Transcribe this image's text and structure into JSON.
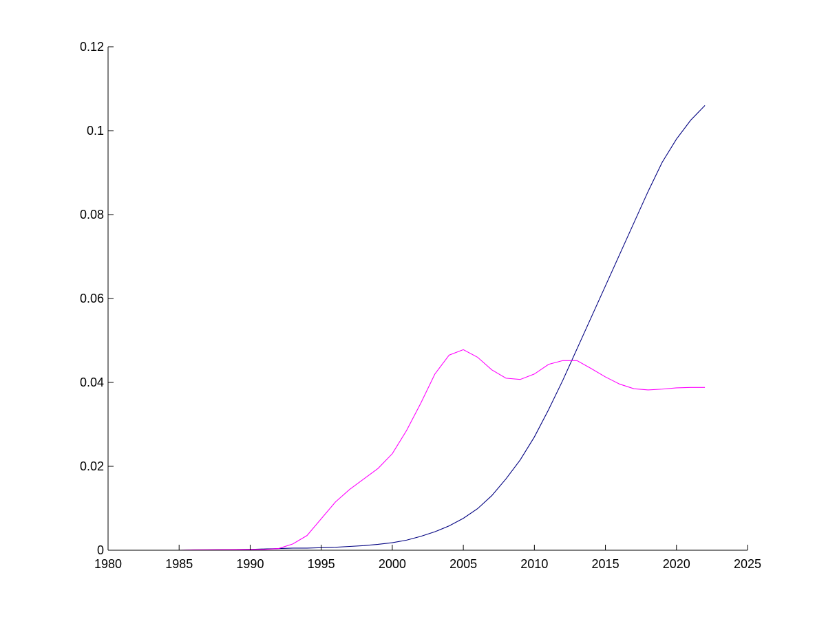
{
  "chart_data": {
    "type": "line",
    "title": "",
    "xlabel": "",
    "ylabel": "",
    "xlim": [
      1980,
      2025
    ],
    "ylim": [
      0,
      0.12
    ],
    "x_ticks": [
      1980,
      1985,
      1990,
      1995,
      2000,
      2005,
      2010,
      2015,
      2020,
      2025
    ],
    "y_ticks": [
      0,
      0.02,
      0.04,
      0.06,
      0.08,
      0.1,
      0.12
    ],
    "x_tick_labels": [
      "1980",
      "1985",
      "1990",
      "1995",
      "2000",
      "2005",
      "2010",
      "2015",
      "2020",
      "2025"
    ],
    "y_tick_labels": [
      "0",
      "0.02",
      "0.04",
      "0.06",
      "0.08",
      "0.1",
      "0.12"
    ],
    "grid": false,
    "legend": "none",
    "series": [
      {
        "color": "#000080",
        "x": [
          1980,
          1985,
          1990,
          1991,
          1992,
          1993,
          1994,
          1995,
          1996,
          1997,
          1998,
          1999,
          2000,
          2001,
          2002,
          2003,
          2004,
          2005,
          2006,
          2007,
          2008,
          2009,
          2010,
          2011,
          2012,
          2013,
          2014,
          2015,
          2016,
          2017,
          2018,
          2019,
          2020,
          2021,
          2022
        ],
        "y": [
          0,
          0,
          0.0002,
          0.0003,
          0.0004,
          0.0005,
          0.0005,
          0.0006,
          0.0007,
          0.0009,
          0.0011,
          0.0014,
          0.0018,
          0.0024,
          0.0033,
          0.0044,
          0.0058,
          0.0076,
          0.0099,
          0.013,
          0.017,
          0.0215,
          0.027,
          0.0335,
          0.0405,
          0.048,
          0.0555,
          0.063,
          0.0705,
          0.078,
          0.0855,
          0.0925,
          0.098,
          0.1025,
          0.106
        ]
      },
      {
        "color": "#ff00ff",
        "x": [
          1980,
          1985,
          1986,
          1990,
          1991,
          1992,
          1993,
          1994,
          1995,
          1996,
          1997,
          1998,
          1999,
          2000,
          2001,
          2002,
          2003,
          2004,
          2005,
          2006,
          2007,
          2008,
          2009,
          2010,
          2011,
          2012,
          2013,
          2014,
          2015,
          2016,
          2017,
          2018,
          2019,
          2020,
          2021,
          2022
        ],
        "y": [
          0,
          0,
          0.0001,
          0.0002,
          0.0002,
          0.0004,
          0.0015,
          0.0035,
          0.0075,
          0.0115,
          0.0145,
          0.017,
          0.0195,
          0.023,
          0.0285,
          0.035,
          0.042,
          0.0465,
          0.0478,
          0.046,
          0.043,
          0.041,
          0.0407,
          0.042,
          0.0443,
          0.0452,
          0.0452,
          0.0433,
          0.0413,
          0.0396,
          0.0385,
          0.0382,
          0.0384,
          0.0387,
          0.0388,
          0.0388
        ]
      }
    ]
  }
}
